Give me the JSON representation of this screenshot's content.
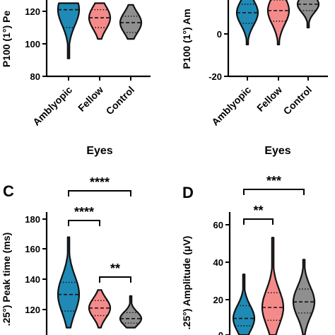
{
  "chart_data": [
    {
      "panel": "A",
      "panel_letter": "",
      "type": "violin",
      "ylabel": "P100 (1°) Pe",
      "xlabel": "Eyes",
      "categories": [
        "Amblyopic",
        "Fellow",
        "Control"
      ],
      "colors": [
        "#1f8ab5",
        "#f58a8a",
        "#8f8f8f"
      ],
      "yticks": [
        "80",
        "100",
        "120"
      ],
      "ylim": [
        80,
        125
      ],
      "violins": [
        {
          "name": "Amblyopic",
          "min": 91,
          "max": 125,
          "q1": 110,
          "median": 121,
          "q3": 125
        },
        {
          "name": "Fellow",
          "min": 103,
          "max": 125,
          "q1": 110,
          "median": 116,
          "q3": 121
        },
        {
          "name": "Control",
          "min": 103,
          "max": 124,
          "q1": 107,
          "median": 113,
          "q3": 117
        }
      ],
      "significance": []
    },
    {
      "panel": "B",
      "panel_letter": "",
      "type": "violin",
      "ylabel": "P100 (1°) Am",
      "xlabel": "Eyes",
      "categories": [
        "Amblyopic",
        "Fellow",
        "Control"
      ],
      "colors": [
        "#1f8ab5",
        "#f58a8a",
        "#8f8f8f"
      ],
      "yticks": [
        "-20",
        "0"
      ],
      "ylim": [
        -20,
        20
      ],
      "violins": [
        {
          "name": "Amblyopic",
          "min": -5,
          "max": 20,
          "q1": 5,
          "median": 10,
          "q3": 14
        },
        {
          "name": "Fellow",
          "min": -5,
          "max": 20,
          "q1": 6,
          "median": 11,
          "q3": 16
        },
        {
          "name": "Control",
          "min": 3,
          "max": 20,
          "q1": 11,
          "median": 14,
          "q3": 17
        }
      ],
      "significance": []
    },
    {
      "panel": "C",
      "panel_letter": "C",
      "type": "violin",
      "ylabel": ".25°) Peak time (ms)",
      "xlabel": "",
      "categories": [
        "",
        "",
        ""
      ],
      "colors": [
        "#1f8ab5",
        "#f58a8a",
        "#8f8f8f"
      ],
      "yticks": [
        "120",
        "140",
        "160",
        "180"
      ],
      "ylim": [
        105,
        180
      ],
      "violins": [
        {
          "name": "Amblyopic",
          "min": 108,
          "max": 168,
          "q1": 119,
          "median": 130,
          "q3": 138
        },
        {
          "name": "Fellow",
          "min": 108,
          "max": 133,
          "q1": 116,
          "median": 121,
          "q3": 126
        },
        {
          "name": "Control",
          "min": 108,
          "max": 129,
          "q1": 111,
          "median": 114,
          "q3": 118
        }
      ],
      "significance": [
        {
          "from": 0,
          "to": 2,
          "label": "****"
        },
        {
          "from": 0,
          "to": 1,
          "label": "****"
        },
        {
          "from": 1,
          "to": 2,
          "label": "**"
        }
      ]
    },
    {
      "panel": "D",
      "panel_letter": "D",
      "type": "violin",
      "ylabel": ".25°) Amplitude (μV)",
      "xlabel": "",
      "categories": [
        "",
        "",
        ""
      ],
      "colors": [
        "#1f8ab5",
        "#f58a8a",
        "#8f8f8f"
      ],
      "yticks": [
        "0",
        "20",
        "40",
        "60"
      ],
      "ylim": [
        0,
        65
      ],
      "violins": [
        {
          "name": "Amblyopic",
          "min": 0,
          "max": 33,
          "q1": 5,
          "median": 9,
          "q3": 16
        },
        {
          "name": "Fellow",
          "min": 0,
          "max": 53,
          "q1": 8,
          "median": 15,
          "q3": 23
        },
        {
          "name": "Control",
          "min": 0,
          "max": 41,
          "q1": 12,
          "median": 18,
          "q3": 25
        }
      ],
      "significance": [
        {
          "from": 0,
          "to": 2,
          "label": "***"
        },
        {
          "from": 0,
          "to": 1,
          "label": "**"
        }
      ]
    }
  ]
}
